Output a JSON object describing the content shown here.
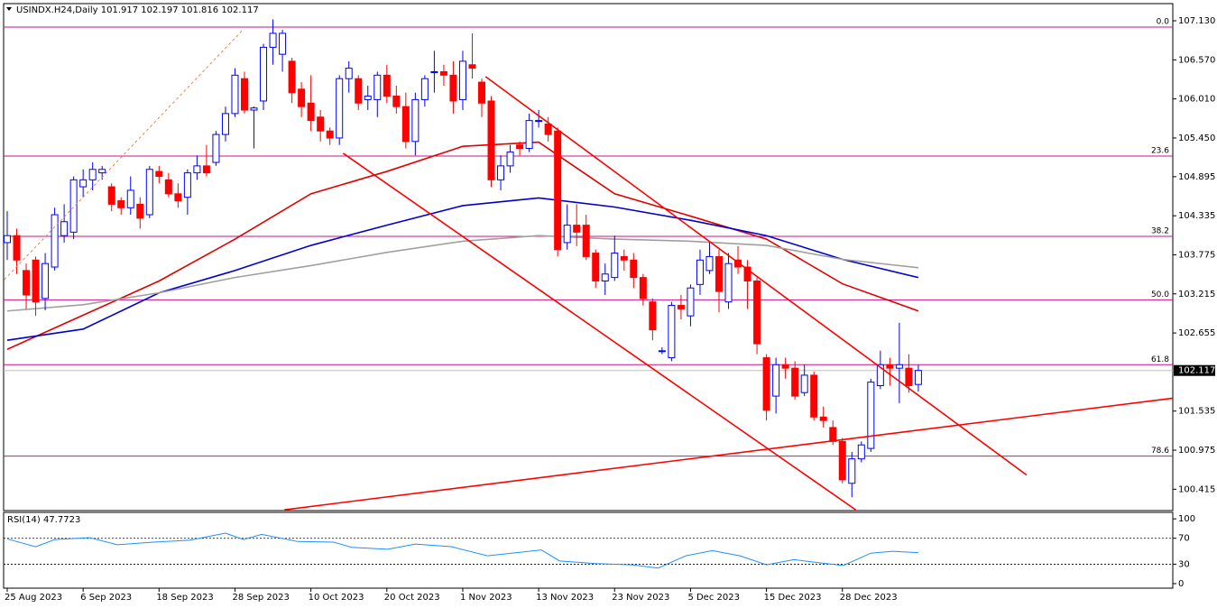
{
  "chart_data": [
    {
      "type": "candlestick",
      "title": "USINDX.H24,Daily  101.917 102.197 101.816 102.117",
      "categories": [
        "25 Aug 2023",
        null,
        null,
        null,
        null,
        null,
        null,
        null,
        "6 Sep 2023",
        null,
        null,
        null,
        null,
        null,
        null,
        null,
        "18 Sep 2023",
        null,
        null,
        null,
        null,
        null,
        null,
        null,
        "28 Sep 2023",
        null,
        null,
        null,
        null,
        null,
        null,
        null,
        "10 Oct 2023",
        null,
        null,
        null,
        null,
        null,
        null,
        null,
        "20 Oct 2023",
        null,
        null,
        null,
        null,
        null,
        null,
        null,
        "1 Nov 2023",
        null,
        null,
        null,
        null,
        null,
        null,
        null,
        "13 Nov 2023",
        null,
        null,
        null,
        null,
        null,
        null,
        null,
        "23 Nov 2023",
        null,
        null,
        null,
        null,
        null,
        null,
        null,
        "5 Dec 2023",
        null,
        null,
        null,
        null,
        null,
        null,
        null,
        "15 Dec 2023",
        null,
        null,
        null,
        null,
        null,
        null,
        null,
        "28 Dec 2023",
        null,
        null,
        null,
        null,
        null,
        null,
        null,
        null
      ],
      "open": [
        103.95,
        104.05,
        103.55,
        103.7,
        103.15,
        103.6,
        104.05,
        104.1,
        104.75,
        104.85,
        104.95,
        104.75,
        104.55,
        104.45,
        104.5,
        104.35,
        104.97,
        104.85,
        104.65,
        104.6,
        104.95,
        105.05,
        105.1,
        105.5,
        105.8,
        106.3,
        105.85,
        105.98,
        106.75,
        106.65,
        106.55,
        106.15,
        105.95,
        105.75,
        105.55,
        105.45,
        106.3,
        106.3,
        106.0,
        106.0,
        106.35,
        106.05,
        105.9,
        105.4,
        106.0,
        106.4,
        106.4,
        106.35,
        106.0,
        106.5,
        106.25,
        105.98,
        104.85,
        105.05,
        105.35,
        105.3,
        105.7,
        105.65,
        105.55,
        103.95,
        104.2,
        104.2,
        103.8,
        103.4,
        103.45,
        103.75,
        103.7,
        103.45,
        103.1,
        102.4,
        102.3,
        103.05,
        102.9,
        103.35,
        103.55,
        103.75,
        103.1,
        103.7,
        103.6,
        103.4,
        102.3,
        101.75,
        102.2,
        102.15,
        101.8,
        102.05,
        101.45,
        101.3,
        101.1,
        100.5,
        100.85,
        101.0,
        101.9,
        102.2,
        102.15,
        102.15,
        101.917
      ],
      "high": [
        104.4,
        104.15,
        103.65,
        103.75,
        103.8,
        104.45,
        104.5,
        104.9,
        105.0,
        105.1,
        105.05,
        104.8,
        104.6,
        104.9,
        104.6,
        105.05,
        105.05,
        104.95,
        104.8,
        105.0,
        105.2,
        105.35,
        105.55,
        105.9,
        106.45,
        106.4,
        105.9,
        106.8,
        107.15,
        107.0,
        106.6,
        106.25,
        106.35,
        105.85,
        105.6,
        106.35,
        106.55,
        106.35,
        106.2,
        106.4,
        106.5,
        106.2,
        106.1,
        106.1,
        106.35,
        106.7,
        106.5,
        106.55,
        106.7,
        106.95,
        106.3,
        106.05,
        105.2,
        105.35,
        105.4,
        105.8,
        105.85,
        105.75,
        105.6,
        104.5,
        104.5,
        104.35,
        103.85,
        103.65,
        104.05,
        103.85,
        103.8,
        103.5,
        103.15,
        102.45,
        103.1,
        103.2,
        103.35,
        103.85,
        103.95,
        103.85,
        103.8,
        103.9,
        103.7,
        103.45,
        102.35,
        102.3,
        102.3,
        102.25,
        102.2,
        102.1,
        101.6,
        101.4,
        101.15,
        100.95,
        101.1,
        102.0,
        102.4,
        102.3,
        102.8,
        102.35,
        102.197
      ],
      "low": [
        103.7,
        103.5,
        103.0,
        102.9,
        102.98,
        103.55,
        103.95,
        104.0,
        104.6,
        104.7,
        104.85,
        104.4,
        104.35,
        104.35,
        104.15,
        104.3,
        104.8,
        104.6,
        104.45,
        104.35,
        104.85,
        104.9,
        105.05,
        105.4,
        105.75,
        105.8,
        105.3,
        105.85,
        106.5,
        106.4,
        105.95,
        105.75,
        105.55,
        105.4,
        105.35,
        105.35,
        106.1,
        105.85,
        105.85,
        105.75,
        105.95,
        105.8,
        105.3,
        105.2,
        105.9,
        106.1,
        106.2,
        105.8,
        105.85,
        106.3,
        105.75,
        104.75,
        104.7,
        104.95,
        105.2,
        105.25,
        105.6,
        105.4,
        103.75,
        103.85,
        103.9,
        103.7,
        103.3,
        103.2,
        103.4,
        103.55,
        103.3,
        103.05,
        102.55,
        102.35,
        102.25,
        102.85,
        102.75,
        103.2,
        103.5,
        102.95,
        103.0,
        103.5,
        103.0,
        102.35,
        101.4,
        101.5,
        102.0,
        101.7,
        101.75,
        101.4,
        101.3,
        101.05,
        100.5,
        100.3,
        100.8,
        100.95,
        101.85,
        101.9,
        101.65,
        101.8,
        101.816
      ],
      "close": [
        104.05,
        103.7,
        103.2,
        103.1,
        103.65,
        104.35,
        104.25,
        104.85,
        104.85,
        105.0,
        105.0,
        104.5,
        104.45,
        104.7,
        104.3,
        105.0,
        104.9,
        104.65,
        104.55,
        104.95,
        105.05,
        104.95,
        105.5,
        105.8,
        106.35,
        105.85,
        105.88,
        106.75,
        106.95,
        106.95,
        106.1,
        105.9,
        105.7,
        105.55,
        105.45,
        106.3,
        106.45,
        105.95,
        106.05,
        106.35,
        106.05,
        105.9,
        105.4,
        106.0,
        106.3,
        106.4,
        106.35,
        105.98,
        106.55,
        106.45,
        105.95,
        104.85,
        105.05,
        105.25,
        105.3,
        105.7,
        105.7,
        105.5,
        103.85,
        104.2,
        104.1,
        103.75,
        103.4,
        103.5,
        103.8,
        103.7,
        103.45,
        103.15,
        102.7,
        102.4,
        103.05,
        103.0,
        103.3,
        103.7,
        103.75,
        103.25,
        103.65,
        103.6,
        103.4,
        102.5,
        101.55,
        102.2,
        102.15,
        101.75,
        102.05,
        101.45,
        101.4,
        101.1,
        100.55,
        100.85,
        101.05,
        101.95,
        102.2,
        102.15,
        102.2,
        101.9,
        102.117
      ],
      "up_color": "#0000ff",
      "down_color": "#ff0000",
      "ylim": [
        100.109,
        107.376
      ],
      "yticks": [
        {
          "value": 107.13,
          "label": "107.130"
        },
        {
          "value": 106.57,
          "label": "106.570"
        },
        {
          "value": 106.01,
          "label": "106.010"
        },
        {
          "value": 105.45,
          "label": "105.450"
        },
        {
          "value": 104.895,
          "label": "104.895"
        },
        {
          "value": 104.335,
          "label": "104.335"
        },
        {
          "value": 103.775,
          "label": "103.775"
        },
        {
          "value": 103.215,
          "label": "103.215"
        },
        {
          "value": 102.655,
          "label": "102.655"
        },
        {
          "value": 101.535,
          "label": "101.535"
        },
        {
          "value": 100.975,
          "label": "100.975"
        },
        {
          "value": 100.415,
          "label": "100.415"
        }
      ],
      "last_price": {
        "value": 102.117,
        "label": "102.117"
      },
      "fib_color": "#c71585",
      "fib_levels": [
        {
          "value": 107.04,
          "label": "0.0"
        },
        {
          "value": 105.19,
          "label": "23.6"
        },
        {
          "value": 104.04,
          "label": "38.2"
        },
        {
          "value": 103.13,
          "label": "50.0"
        },
        {
          "value": 102.2,
          "label": "61.8"
        },
        {
          "value": 100.89,
          "label": "78.6"
        }
      ],
      "moving_averages": [
        {
          "color": "#e00000",
          "x": [
            0,
            8,
            16,
            24,
            32,
            40,
            48,
            56,
            64,
            72,
            80,
            88,
            96
          ],
          "values": [
            102.42,
            102.91,
            103.4,
            104.0,
            104.65,
            104.97,
            105.33,
            105.39,
            104.65,
            104.33,
            104.0,
            103.36,
            102.97
          ]
        },
        {
          "color": "#0000cc",
          "x": [
            0,
            8,
            16,
            24,
            32,
            40,
            48,
            56,
            64,
            72,
            80,
            88,
            96
          ],
          "values": [
            102.55,
            102.71,
            103.23,
            103.55,
            103.91,
            104.2,
            104.48,
            104.59,
            104.46,
            104.27,
            104.05,
            103.71,
            103.45
          ]
        },
        {
          "color": "#a0a0a0",
          "x": [
            0,
            8,
            16,
            24,
            32,
            40,
            48,
            56,
            64,
            72,
            80,
            88,
            96
          ],
          "values": [
            102.97,
            103.06,
            103.23,
            103.45,
            103.62,
            103.81,
            103.97,
            104.05,
            104.0,
            103.97,
            103.91,
            103.71,
            103.59
          ]
        }
      ],
      "trendlines": [
        {
          "color": "#ff0000",
          "dashed": false,
          "x": [
            50.4,
            107.4
          ],
          "y": [
            106.33,
            100.62
          ]
        },
        {
          "color": "#ff0000",
          "dashed": false,
          "x": [
            35.4,
            89.4
          ],
          "y": [
            105.23,
            100.12
          ]
        },
        {
          "color": "#ff0000",
          "dashed": false,
          "x": [
            29.2,
            122.8
          ],
          "y": [
            100.12,
            101.72
          ]
        },
        {
          "color": "#f08050",
          "dashed": true,
          "x": [
            -0.3,
            24.9
          ],
          "y": [
            103.42,
            107.01
          ]
        }
      ]
    },
    {
      "type": "line",
      "title": "RSI(14) 47.7723",
      "color": "#1e90ff",
      "x": [
        0,
        3,
        5,
        8.7,
        11.6,
        15.4,
        19.2,
        23,
        24.9,
        26.8,
        30.6,
        34.4,
        36.3,
        40.1,
        43,
        46.8,
        50.6,
        52.5,
        56.3,
        58.2,
        62,
        65.8,
        68.6,
        71.5,
        74.3,
        77.2,
        80,
        82.9,
        85.7,
        88.1,
        91,
        93.3,
        96
      ],
      "values": [
        69,
        57,
        68,
        71,
        60,
        64,
        67,
        78,
        68,
        76,
        65,
        64,
        56,
        53,
        61,
        57,
        43,
        46,
        52,
        35,
        31,
        29,
        24,
        43,
        51,
        43,
        29,
        37,
        32,
        28,
        47,
        50,
        47.7723
      ],
      "ylim": [
        -7,
        110
      ],
      "yticks": [
        0,
        30,
        70,
        100
      ],
      "levels": [
        30,
        70
      ]
    }
  ]
}
